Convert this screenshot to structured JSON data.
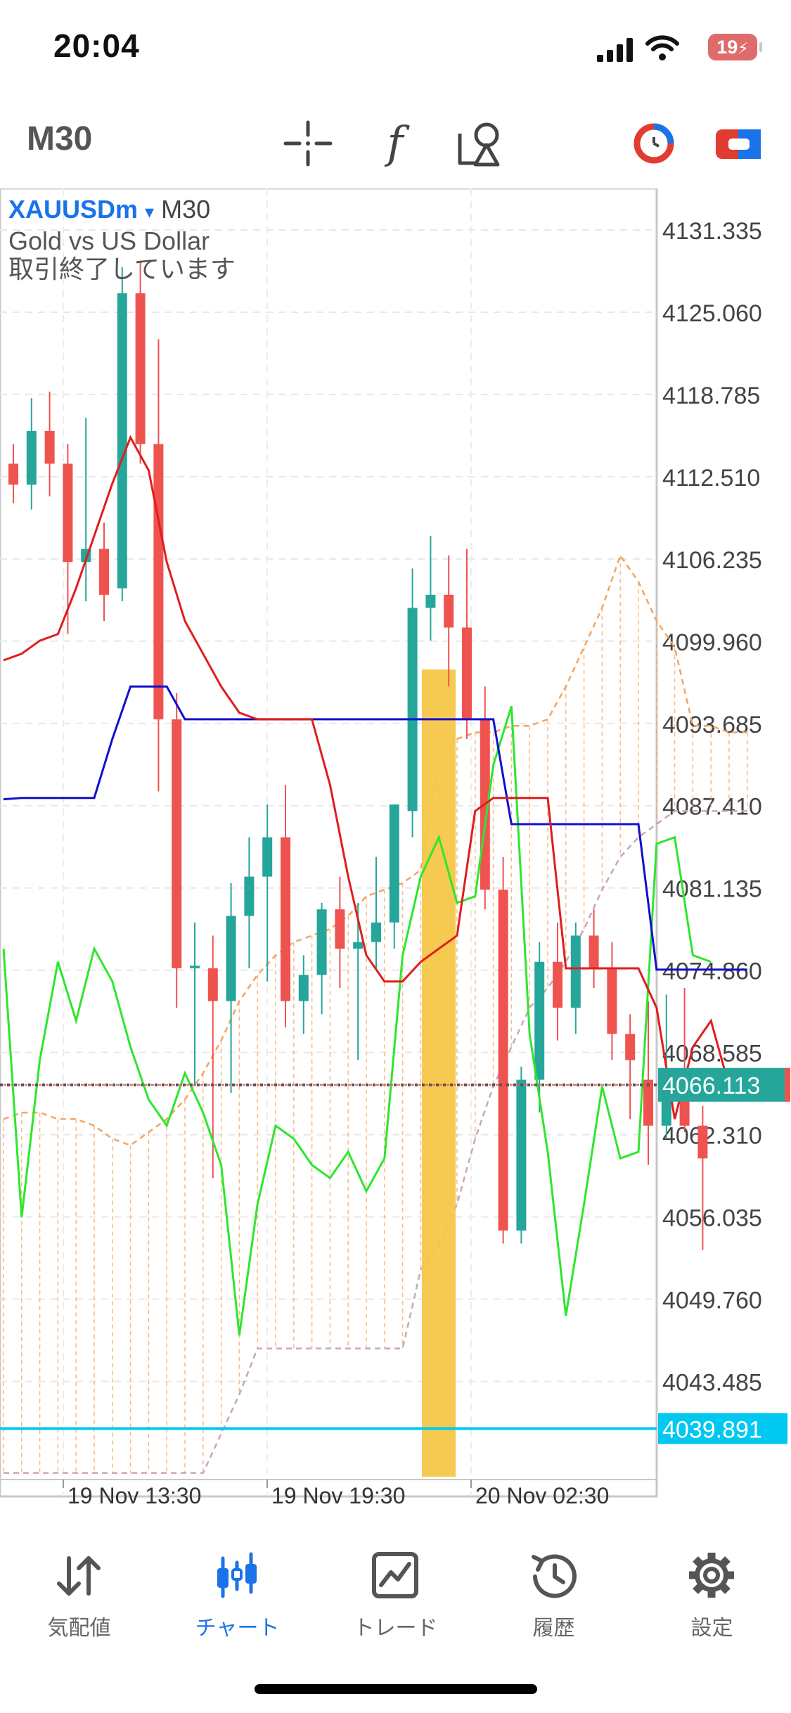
{
  "status_bar": {
    "time": "20:04",
    "battery": "19"
  },
  "toolbar": {
    "timeframe": "M30"
  },
  "chart": {
    "symbol": "XAUUSDm",
    "dropdown_glyph": "▾",
    "timeframe": "M30",
    "description": "Gold vs US Dollar",
    "market_status": "取引終了しています",
    "current_price": "4066.113",
    "lower_line_price": "4039.891"
  },
  "chart_data": {
    "type": "candlestick",
    "y_ticks": [
      "4131.335",
      "4125.060",
      "4118.785",
      "4112.510",
      "4106.235",
      "4099.960",
      "4093.685",
      "4087.410",
      "4081.135",
      "4074.860",
      "4068.585",
      "4062.310",
      "4056.035",
      "4049.760",
      "4043.485"
    ],
    "ylim": [
      4036.0,
      4134.5
    ],
    "x_labels": [
      "19 Nov 13:30",
      "19 Nov 19:30",
      "20 Nov 02:30"
    ],
    "candles": [
      {
        "o": 4113.5,
        "h": 4115.0,
        "l": 4110.5,
        "c": 4111.9
      },
      {
        "o": 4111.9,
        "h": 4118.5,
        "l": 4110.0,
        "c": 4116.0
      },
      {
        "o": 4116.0,
        "h": 4119.0,
        "l": 4111.0,
        "c": 4113.5
      },
      {
        "o": 4113.5,
        "h": 4115.0,
        "l": 4100.5,
        "c": 4106.0
      },
      {
        "o": 4106.0,
        "h": 4117.0,
        "l": 4103.0,
        "c": 4107.0
      },
      {
        "o": 4107.0,
        "h": 4109.0,
        "l": 4101.5,
        "c": 4103.5
      },
      {
        "o": 4104.0,
        "h": 4128.5,
        "l": 4103.0,
        "c": 4126.5
      },
      {
        "o": 4126.5,
        "h": 4129.0,
        "l": 4113.5,
        "c": 4115.0
      },
      {
        "o": 4115.0,
        "h": 4123.0,
        "l": 4088.5,
        "c": 4094.0
      },
      {
        "o": 4094.0,
        "h": 4096.0,
        "l": 4072.0,
        "c": 4075.0
      },
      {
        "o": 4075.0,
        "h": 4078.5,
        "l": 4066.0,
        "c": 4075.2
      },
      {
        "o": 4075.0,
        "h": 4077.5,
        "l": 4059.0,
        "c": 4072.5
      },
      {
        "o": 4072.5,
        "h": 4081.5,
        "l": 4065.5,
        "c": 4079.0
      },
      {
        "o": 4079.0,
        "h": 4085.0,
        "l": 4075.0,
        "c": 4082.0
      },
      {
        "o": 4082.0,
        "h": 4087.5,
        "l": 4074.0,
        "c": 4085.0
      },
      {
        "o": 4085.0,
        "h": 4089.0,
        "l": 4070.5,
        "c": 4072.5
      },
      {
        "o": 4072.5,
        "h": 4076.0,
        "l": 4070.0,
        "c": 4074.5
      },
      {
        "o": 4074.5,
        "h": 4080.0,
        "l": 4071.5,
        "c": 4079.5
      },
      {
        "o": 4079.5,
        "h": 4082.0,
        "l": 4073.5,
        "c": 4076.5
      },
      {
        "o": 4076.5,
        "h": 4080.0,
        "l": 4068.0,
        "c": 4077.0
      },
      {
        "o": 4077.0,
        "h": 4083.5,
        "l": 4075.0,
        "c": 4078.5
      },
      {
        "o": 4078.5,
        "h": 4087.5,
        "l": 4076.5,
        "c": 4087.5
      },
      {
        "o": 4087.0,
        "h": 4105.5,
        "l": 4085.0,
        "c": 4102.5
      },
      {
        "o": 4102.5,
        "h": 4108.0,
        "l": 4100.0,
        "c": 4103.5
      },
      {
        "o": 4103.5,
        "h": 4106.5,
        "l": 4096.5,
        "c": 4101.0
      },
      {
        "o": 4101.0,
        "h": 4107.0,
        "l": 4092.5,
        "c": 4094.0
      },
      {
        "o": 4094.0,
        "h": 4096.5,
        "l": 4079.5,
        "c": 4081.0
      },
      {
        "o": 4081.0,
        "h": 4083.5,
        "l": 4054.0,
        "c": 4055.0
      },
      {
        "o": 4055.0,
        "h": 4067.5,
        "l": 4054.0,
        "c": 4066.5
      },
      {
        "o": 4066.5,
        "h": 4077.0,
        "l": 4064.0,
        "c": 4075.5
      },
      {
        "o": 4075.5,
        "h": 4078.5,
        "l": 4069.5,
        "c": 4072.0
      },
      {
        "o": 4072.0,
        "h": 4078.5,
        "l": 4070.0,
        "c": 4077.5
      },
      {
        "o": 4077.5,
        "h": 4079.5,
        "l": 4073.5,
        "c": 4075.0
      },
      {
        "o": 4075.0,
        "h": 4077.0,
        "l": 4068.0,
        "c": 4070.0
      },
      {
        "o": 4070.0,
        "h": 4071.5,
        "l": 4063.5,
        "c": 4068.0
      },
      {
        "o": 4066.5,
        "h": 4072.5,
        "l": 4060.0,
        "c": 4063.0
      },
      {
        "o": 4063.0,
        "h": 4073.0,
        "l": 4062.0,
        "c": 4066.0
      },
      {
        "o": 4066.0,
        "h": 4073.5,
        "l": 4062.5,
        "c": 4063.0
      },
      {
        "o": 4063.0,
        "h": 4064.5,
        "l": 4053.5,
        "c": 4060.5
      }
    ],
    "lines": {
      "tenkan": [
        4098.5,
        4099.0,
        4100.0,
        4100.5,
        4104.0,
        4108.0,
        4112.0,
        4115.5,
        4113.0,
        4106.0,
        4101.5,
        4099.0,
        4096.5,
        4094.5,
        4094.0,
        4094.0,
        4094.0,
        4094.0,
        4089.0,
        4082.0,
        4076.0,
        4074.0,
        4074.0,
        4075.5,
        4076.5,
        4077.5,
        4087.0,
        4088.0,
        4088.0,
        4088.0,
        4088.0,
        4075.0,
        4075.0,
        4075.0,
        4075.0,
        4075.0,
        4072.0,
        4063.5,
        4069.0,
        4071.0,
        4066.0
      ],
      "kijun": [
        4087.9,
        4088.0,
        4088.0,
        4088.0,
        4088.0,
        4088.0,
        4092.5,
        4096.5,
        4096.5,
        4096.5,
        4094.0,
        4094.0,
        4094.0,
        4094.0,
        4094.0,
        4094.0,
        4094.0,
        4094.0,
        4094.0,
        4094.0,
        4094.0,
        4094.0,
        4094.0,
        4094.0,
        4094.0,
        4094.0,
        4094.0,
        4094.0,
        4086.0,
        4086.0,
        4086.0,
        4086.0,
        4086.0,
        4086.0,
        4086.0,
        4086.0,
        4074.9,
        4074.9,
        4074.9,
        4074.9,
        4074.9,
        4074.9
      ],
      "chikou": [
        4076.5,
        4056.0,
        4068.0,
        4075.5,
        4071.0,
        4076.5,
        4074.0,
        4069.0,
        4065.0,
        4063.0,
        4067.0,
        4064.0,
        4060.0,
        4047.0,
        4057.0,
        4063.0,
        4062.0,
        4060.0,
        4059.0,
        4061.0,
        4058.0,
        4060.5,
        4076.0,
        4082.0,
        4085.0,
        4080.0,
        4080.5,
        4090.5,
        4095.0,
        4070.0,
        4061.0,
        4048.5,
        4057.0,
        4066.0,
        4060.5,
        4061.0,
        4084.5,
        4085.0,
        4076.0,
        4075.5
      ],
      "span_a": [
        4063.5,
        4064.0,
        4064.0,
        4063.5,
        4063.5,
        4063.0,
        4062.0,
        4061.5,
        4062.5,
        4063.5,
        4065.0,
        4067.0,
        4069.5,
        4072.5,
        4074.5,
        4076.0,
        4077.0,
        4077.5,
        4078.0,
        4079.0,
        4080.5,
        4081.0,
        4081.5,
        4082.5,
        4091.0,
        4092.5,
        4093.0,
        4093.0,
        4093.5,
        4093.5,
        4094.0,
        4096.5,
        4099.5,
        4102.5,
        4106.5,
        4104.5,
        4101.5,
        4099.5,
        4093.5,
        4093.5,
        4093.0,
        4093.0
      ],
      "span_b": [
        4036.5,
        4036.5,
        4036.5,
        4036.5,
        4036.5,
        4036.5,
        4036.5,
        4036.5,
        4036.5,
        4036.5,
        4036.5,
        4036.5,
        4039.5,
        4042.5,
        4046.0,
        4046.0,
        4046.0,
        4046.0,
        4046.0,
        4046.0,
        4046.0,
        4046.0,
        4046.0,
        4052.0,
        4054.0,
        4057.0,
        4062.0,
        4066.0,
        4069.0,
        4072.0,
        4073.5,
        4075.5,
        4078.0,
        4081.0,
        4083.5,
        4085.0,
        4086.0,
        4087.0,
        4087.0,
        4087.0,
        4087.0,
        4087.0
      ]
    },
    "colors": {
      "bull": "#26a69a",
      "bear": "#ef5350",
      "tenkan": "#e11d1d",
      "kijun": "#1010cc",
      "chikou": "#2ee62e",
      "span_a": "#f4a460",
      "span_b": "#c9a6b8",
      "current_price": "#26a69a",
      "lower_line": "#00c8f0",
      "highlight": "#f5c542"
    }
  },
  "nav": {
    "items": [
      {
        "label": "気配値",
        "icon": "quotes-icon"
      },
      {
        "label": "チャート",
        "icon": "chart-candles-icon"
      },
      {
        "label": "トレード",
        "icon": "trade-icon"
      },
      {
        "label": "履歴",
        "icon": "history-icon"
      },
      {
        "label": "設定",
        "icon": "settings-icon"
      }
    ],
    "active": 1
  }
}
